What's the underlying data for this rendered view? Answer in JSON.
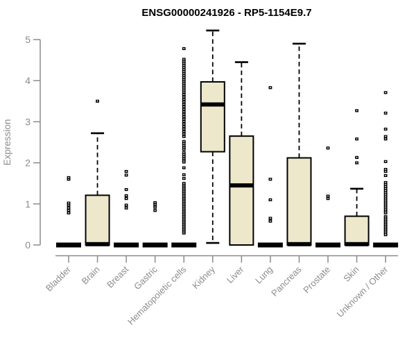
{
  "chart_data": {
    "type": "boxplot",
    "title": "ENSG00000241926 - RP5-1154E9.7",
    "xlabel": "",
    "ylabel": "Expression",
    "ylim": [
      0,
      5.3
    ],
    "y_ticks": [
      0,
      1,
      2,
      3,
      4,
      5
    ],
    "grid": false,
    "legend": "none",
    "x_label_rotation_deg": 45,
    "colors": {
      "box_fill": "#EDE8CC",
      "box_stroke": "#000000",
      "median": "#000000",
      "whisker": "#000000",
      "outlier": "#000000",
      "axis": "#8A8A8A",
      "tick_label": "#8C8C8C",
      "title": "#000000",
      "background": "#FFFFFF"
    },
    "categories": [
      "Bladder",
      "Brain",
      "Breast",
      "Gastric",
      "Hematopoietic cells",
      "Kidney",
      "Liver",
      "Lung",
      "Pancreas",
      "Prostate",
      "Skin",
      "Unknown / Other"
    ],
    "series": [
      {
        "name": "Bladder",
        "flat": true,
        "q1": 0,
        "median": 0,
        "q3": 0,
        "whisker_low": 0,
        "whisker_high": 0,
        "outliers": [
          0.78,
          0.84,
          0.9,
          0.97,
          1.02,
          1.6,
          1.64
        ]
      },
      {
        "name": "Brain",
        "flat": false,
        "q1": 0,
        "median": 0.02,
        "q3": 1.21,
        "whisker_low": 0,
        "whisker_high": 2.72,
        "outliers": [
          3.5
        ]
      },
      {
        "name": "Breast",
        "flat": true,
        "q1": 0,
        "median": 0,
        "q3": 0,
        "whisker_low": 0,
        "whisker_high": 0,
        "outliers": [
          0.9,
          0.97,
          1.13,
          1.2,
          1.35,
          1.7,
          1.79
        ]
      },
      {
        "name": "Gastric",
        "flat": true,
        "q1": 0,
        "median": 0,
        "q3": 0,
        "whisker_low": 0,
        "whisker_high": 0,
        "outliers": [
          0.84,
          0.92,
          0.98,
          1.03
        ]
      },
      {
        "name": "Hematopoietic cells",
        "flat": true,
        "q1": 0,
        "median": 0,
        "q3": 0,
        "whisker_low": 0,
        "whisker_high": 0,
        "outliers": [
          4.78,
          4.52,
          4.47,
          4.42,
          4.37,
          4.32,
          4.27,
          4.22,
          4.17,
          4.12,
          4.07,
          4.02,
          3.97,
          3.92,
          3.87,
          3.82,
          3.77,
          3.72,
          3.66,
          3.6,
          3.54,
          3.48,
          3.42,
          3.36,
          3.3,
          3.24,
          3.18,
          3.12,
          3.06,
          3.0,
          2.94,
          2.88,
          2.82,
          2.76,
          2.7,
          2.64,
          2.52,
          2.47,
          2.42,
          2.37,
          2.33,
          2.25,
          2.2,
          2.15,
          2.1,
          2.06,
          2.02,
          1.88,
          1.71,
          1.62,
          1.5,
          1.45,
          1.41,
          1.37,
          1.33,
          1.29,
          1.25,
          1.21,
          1.17,
          1.13,
          1.09,
          1.05,
          1.01,
          0.97,
          0.93,
          0.89,
          0.85,
          0.81,
          0.77,
          0.73,
          0.69,
          0.65,
          0.61,
          0.57,
          0.53,
          0.49,
          0.45,
          0.41,
          0.37,
          0.33,
          0.29
        ]
      },
      {
        "name": "Kidney",
        "flat": false,
        "q1": 2.27,
        "median": 3.42,
        "q3": 3.97,
        "whisker_low": 0.05,
        "whisker_high": 5.22,
        "outliers": []
      },
      {
        "name": "Liver",
        "flat": false,
        "q1": 0,
        "median": 1.45,
        "q3": 2.65,
        "whisker_low": 0,
        "whisker_high": 4.45,
        "outliers": []
      },
      {
        "name": "Lung",
        "flat": true,
        "q1": 0,
        "median": 0,
        "q3": 0,
        "whisker_low": 0,
        "whisker_high": 0,
        "outliers": [
          0.58,
          0.65,
          1.1,
          1.6,
          3.83
        ]
      },
      {
        "name": "Pancreas",
        "flat": false,
        "q1": 0,
        "median": 0.02,
        "q3": 2.12,
        "whisker_low": 0,
        "whisker_high": 4.9,
        "outliers": []
      },
      {
        "name": "Prostate",
        "flat": true,
        "q1": 0,
        "median": 0,
        "q3": 0,
        "whisker_low": 0,
        "whisker_high": 0,
        "outliers": [
          1.13,
          1.19,
          2.36
        ]
      },
      {
        "name": "Skin",
        "flat": false,
        "q1": 0,
        "median": 0.02,
        "q3": 0.7,
        "whisker_low": 0,
        "whisker_high": 1.37,
        "outliers": [
          2.0,
          2.13,
          2.58,
          3.27
        ]
      },
      {
        "name": "Unknown / Other",
        "flat": true,
        "q1": 0,
        "median": 0,
        "q3": 0,
        "whisker_low": 0,
        "whisker_high": 0,
        "outliers": [
          3.71,
          3.21,
          2.82,
          2.64,
          2.58,
          2.03,
          1.84,
          1.79,
          1.69,
          1.52,
          1.47,
          1.42,
          1.37,
          1.32,
          1.27,
          1.22,
          1.17,
          1.12,
          1.07,
          1.02,
          0.97,
          0.92,
          0.87,
          0.82,
          0.78,
          0.69,
          0.65,
          0.61,
          0.57,
          0.53,
          0.49,
          0.45,
          0.41,
          0.37,
          0.33,
          0.29,
          0.25
        ]
      }
    ]
  }
}
